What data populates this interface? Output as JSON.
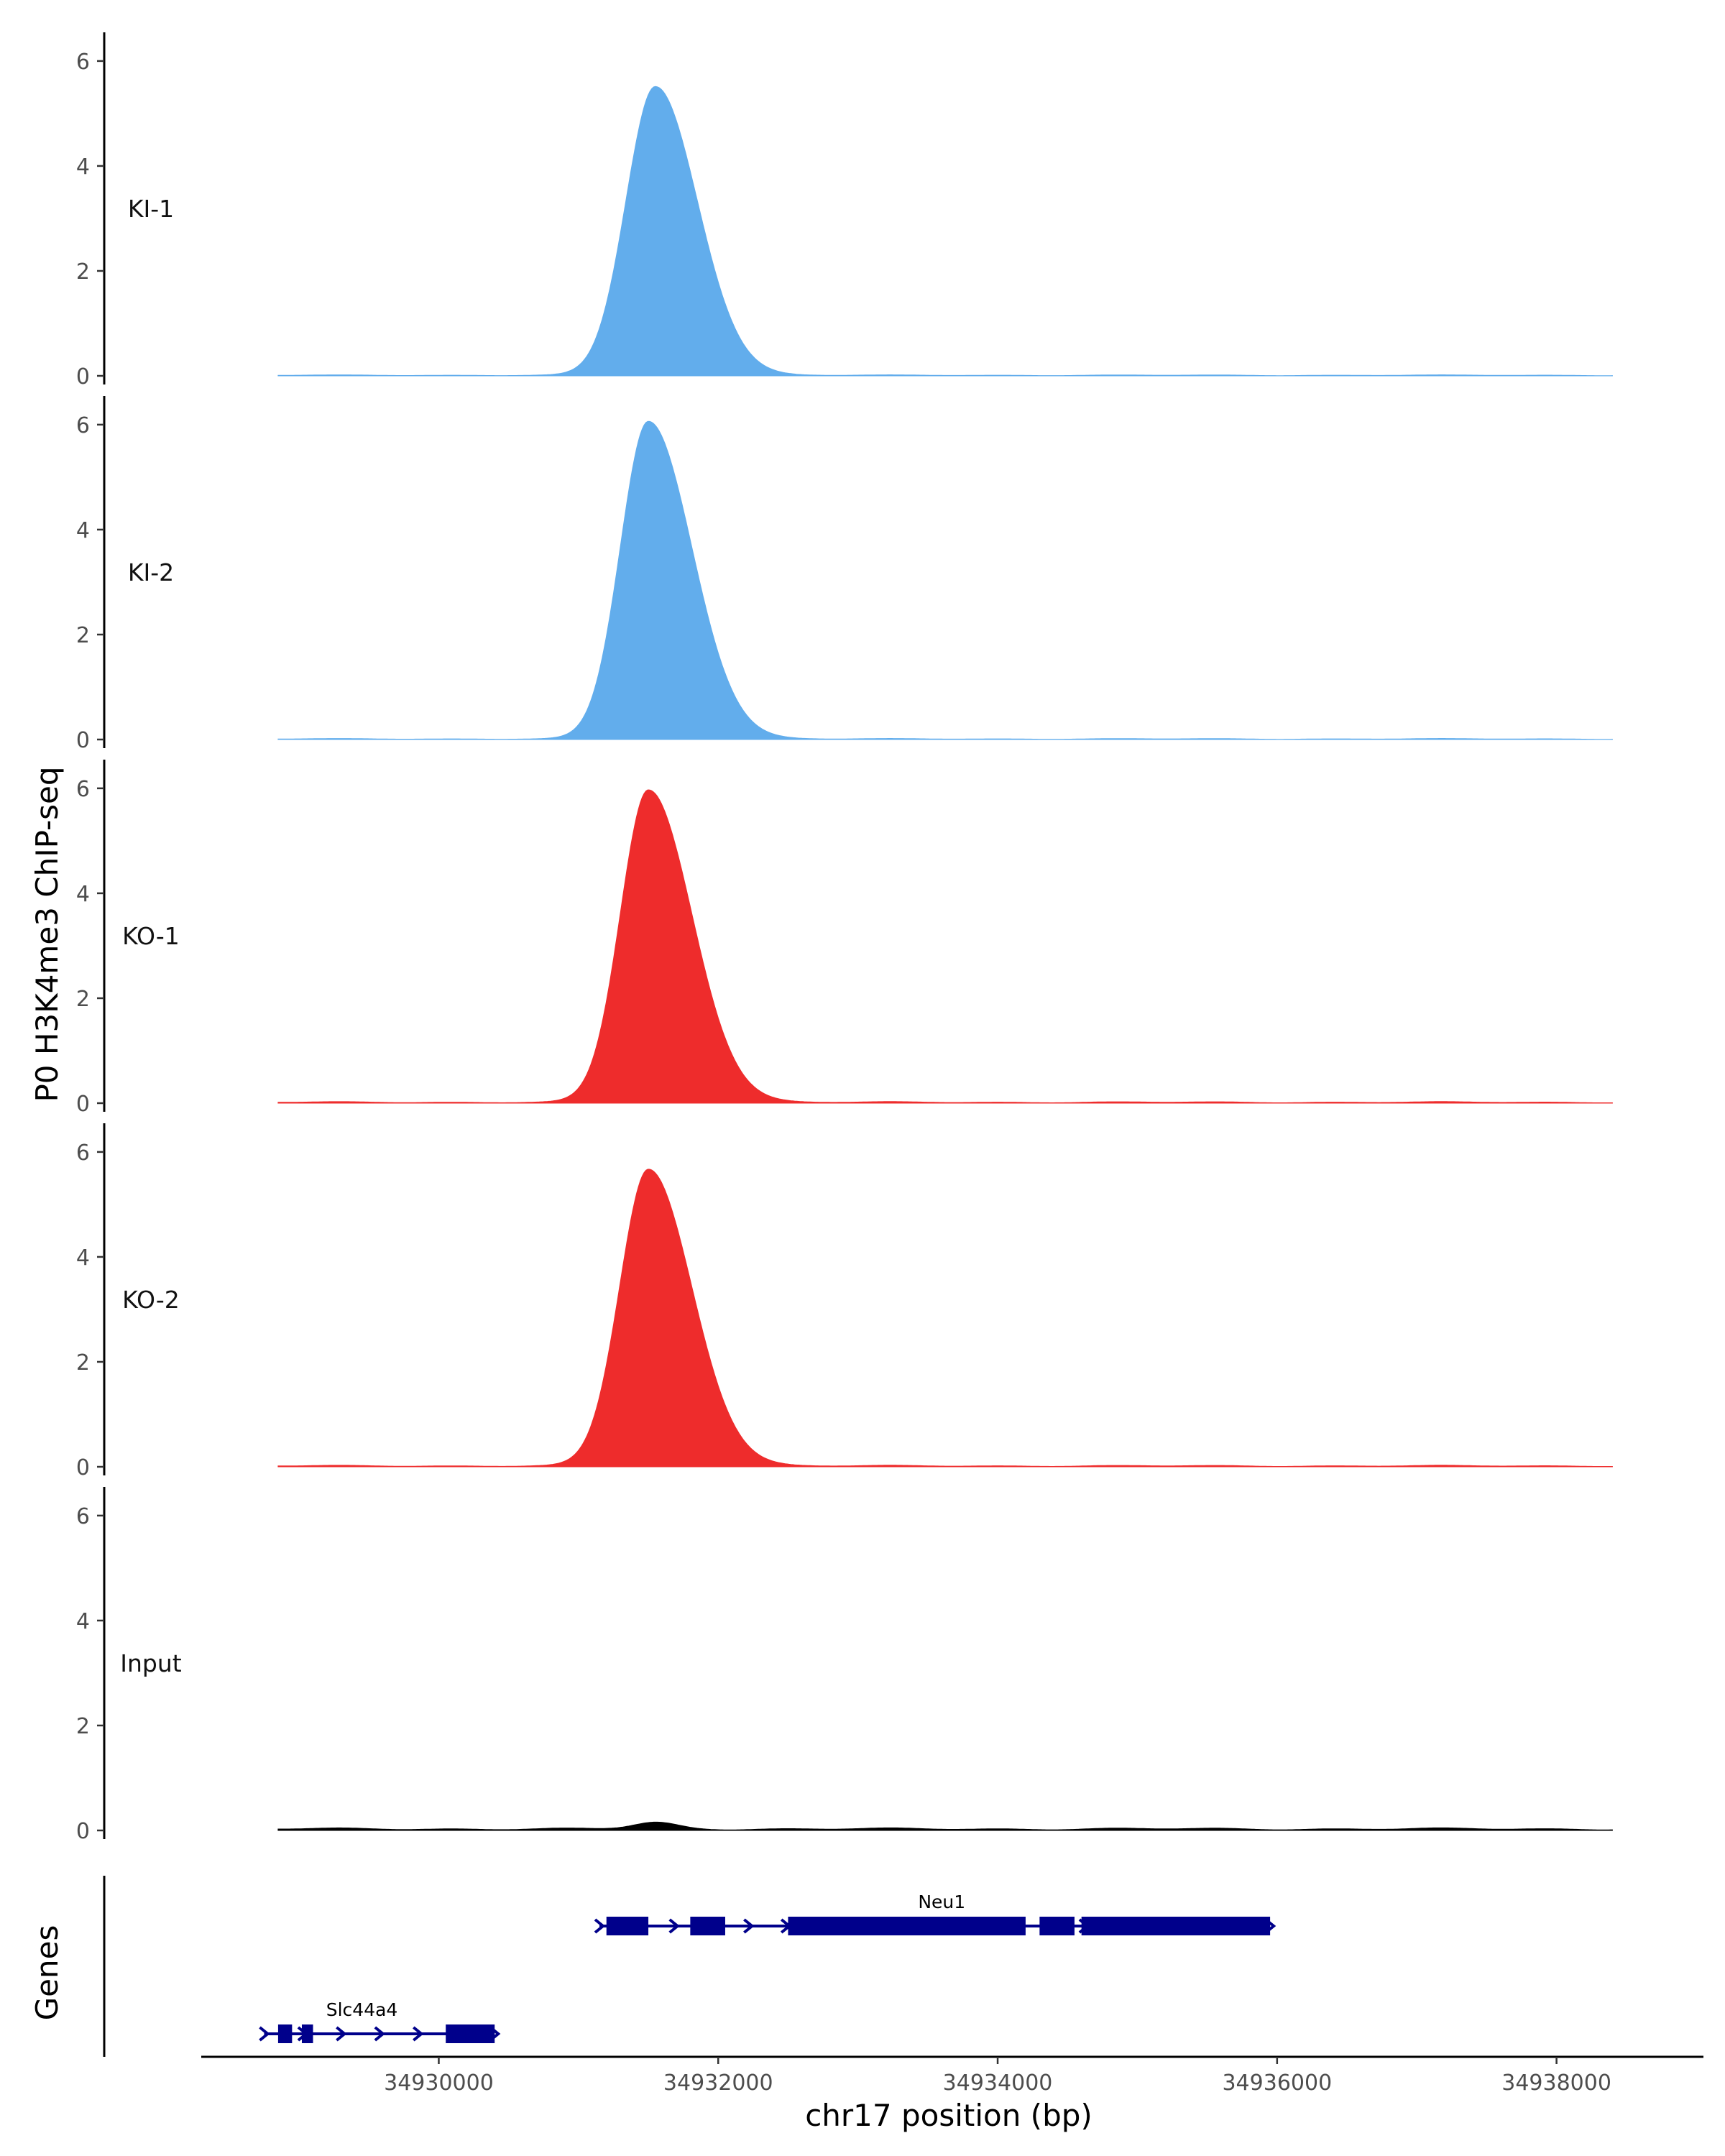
{
  "colors": {
    "ki": "#62adec",
    "ko": "#ee2c2c",
    "input": "#000000",
    "gene": "#00008b"
  },
  "chart_data": {
    "type": "area",
    "xlabel": "chr17 position (bp)",
    "ylabel": "P0 H3K4me3 ChIP-seq",
    "genes_label": "Genes",
    "xlim": [
      34928300,
      34939000
    ],
    "ylim": [
      0,
      6.3
    ],
    "y_ticks": [
      0,
      2,
      4,
      6
    ],
    "x_ticks": [
      34930000,
      34932000,
      34934000,
      34936000,
      34938000
    ],
    "x_tick_labels": [
      "34930000",
      "34932000",
      "34934000",
      "34936000",
      "34938000"
    ],
    "data_x_range": [
      34928850,
      34938400
    ],
    "series": [
      {
        "name": "KI-1",
        "color_key": "ki",
        "peak_x": 34931550,
        "peak_y": 5.5,
        "sigma_left": 210,
        "sigma_right": 300,
        "baseline": 0.02
      },
      {
        "name": "KI-2",
        "color_key": "ki",
        "peak_x": 34931500,
        "peak_y": 6.05,
        "sigma_left": 200,
        "sigma_right": 310,
        "baseline": 0.02
      },
      {
        "name": "KO-1",
        "color_key": "ko",
        "peak_x": 34931500,
        "peak_y": 5.95,
        "sigma_left": 200,
        "sigma_right": 310,
        "baseline": 0.03
      },
      {
        "name": "KO-2",
        "color_key": "ko",
        "peak_x": 34931500,
        "peak_y": 5.65,
        "sigma_left": 205,
        "sigma_right": 310,
        "baseline": 0.03
      },
      {
        "name": "Input",
        "color_key": "input",
        "peak_x": 34931550,
        "peak_y": 0.12,
        "sigma_left": 150,
        "sigma_right": 150,
        "baseline": 0.05
      }
    ],
    "genes": [
      {
        "name": "Neu1",
        "strand": "+",
        "start": 34931150,
        "end": 34935950,
        "row": 0,
        "exons": [
          [
            34931200,
            34931500
          ],
          [
            34931800,
            34932050
          ],
          [
            34932500,
            34934200
          ],
          [
            34934300,
            34934550
          ],
          [
            34934600,
            34935950
          ]
        ],
        "label_x": 34933600
      },
      {
        "name": "Slc44a4",
        "strand": "+",
        "start": 34928750,
        "end": 34930400,
        "row": 1,
        "exons": [
          [
            34928850,
            34928950
          ],
          [
            34929020,
            34929100
          ],
          [
            34930050,
            34930400
          ]
        ],
        "label_x": 34929450
      }
    ]
  }
}
